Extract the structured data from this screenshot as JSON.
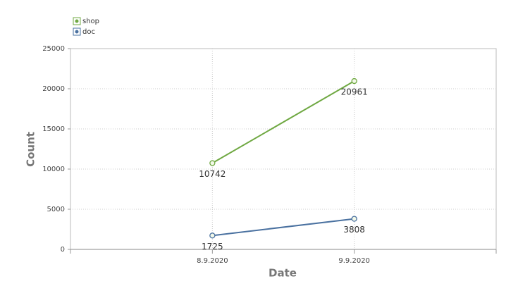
{
  "chart_data": {
    "type": "line",
    "x_label": "Date",
    "y_label": "Count",
    "categories": [
      "8.9.2020",
      "9.9.2020"
    ],
    "series": [
      {
        "name": "shop",
        "color": "#6fa842",
        "values": [
          10742,
          20961
        ]
      },
      {
        "name": "doc",
        "color": "#4a71a0",
        "values": [
          1725,
          3808
        ]
      }
    ],
    "ylim": [
      0,
      25000
    ],
    "yticks": [
      0,
      5000,
      10000,
      15000,
      20000,
      25000
    ],
    "grid": true,
    "legend": "top-left"
  }
}
